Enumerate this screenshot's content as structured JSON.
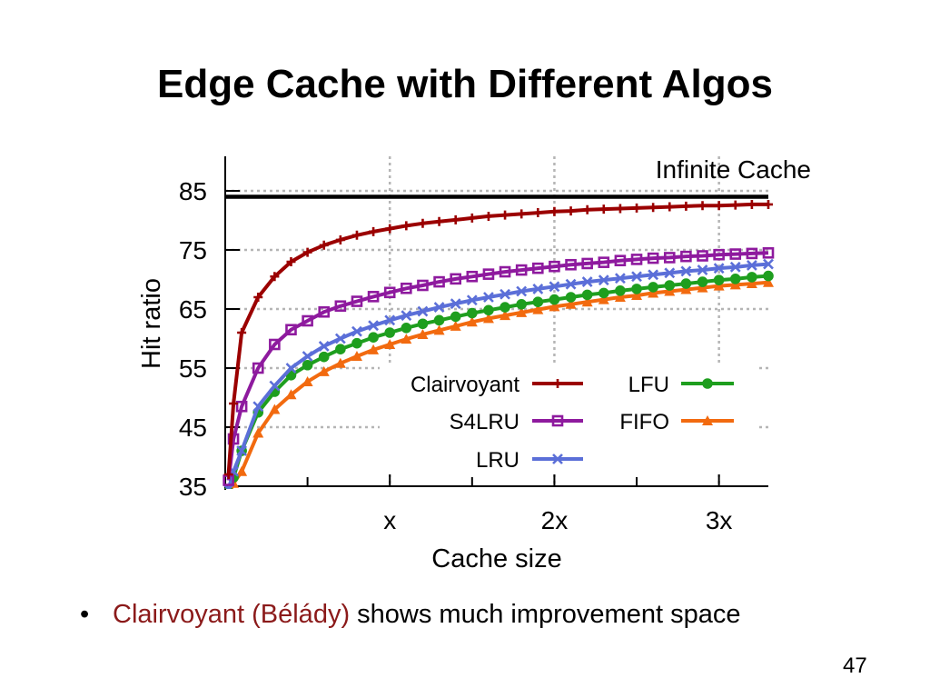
{
  "slide": {
    "title": "Edge Cache with Different Algos",
    "bullet": {
      "symbol": "•",
      "highlight": "Clairvoyant (Bélády)",
      "rest": " shows much improvement space",
      "highlight_color": "#8B1A1A"
    },
    "page_number": "47"
  },
  "chart_data": {
    "type": "line",
    "title": "",
    "xlabel": "Cache size",
    "ylabel": "Hit ratio",
    "xlim": [
      0,
      3.3
    ],
    "ylim": [
      35,
      85
    ],
    "x_ticks": [
      {
        "value": 1,
        "label": "x"
      },
      {
        "value": 2,
        "label": "2x"
      },
      {
        "value": 3,
        "label": "3x"
      }
    ],
    "x_minor_ticks": [
      0.5,
      1.5,
      2.5
    ],
    "y_ticks": [
      35,
      45,
      55,
      65,
      75,
      85
    ],
    "grid": true,
    "reference_line": {
      "label": "Infinite Cache",
      "value": 84
    },
    "legend": {
      "placement": "lower-right",
      "columns": 2
    },
    "x": [
      0.02,
      0.05,
      0.1,
      0.2,
      0.3,
      0.4,
      0.5,
      0.6,
      0.7,
      0.8,
      0.9,
      1.0,
      1.1,
      1.2,
      1.3,
      1.4,
      1.5,
      1.6,
      1.7,
      1.8,
      1.9,
      2.0,
      2.1,
      2.2,
      2.3,
      2.4,
      2.5,
      2.6,
      2.7,
      2.8,
      2.9,
      3.0,
      3.1,
      3.2,
      3.3
    ],
    "series": [
      {
        "name": "Clairvoyant",
        "color": "#9B0000",
        "marker": "plus",
        "values": [
          37,
          49,
          61,
          67,
          70.5,
          73,
          74.6,
          75.8,
          76.7,
          77.5,
          78.1,
          78.6,
          79.1,
          79.5,
          79.8,
          80.1,
          80.4,
          80.7,
          80.9,
          81.1,
          81.3,
          81.5,
          81.6,
          81.8,
          81.9,
          82.0,
          82.1,
          82.2,
          82.3,
          82.4,
          82.5,
          82.5,
          82.6,
          82.7,
          82.7
        ]
      },
      {
        "name": "S4LRU",
        "color": "#8E1A9E",
        "marker": "square",
        "values": [
          36,
          43,
          48.5,
          55,
          59,
          61.5,
          63,
          64.5,
          65.5,
          66.3,
          67.1,
          67.8,
          68.5,
          69.0,
          69.6,
          70.1,
          70.5,
          70.9,
          71.3,
          71.6,
          71.9,
          72.2,
          72.5,
          72.7,
          72.9,
          73.2,
          73.4,
          73.6,
          73.7,
          73.9,
          74.0,
          74.2,
          74.3,
          74.4,
          74.5
        ]
      },
      {
        "name": "LRU",
        "color": "#5B6FD8",
        "marker": "x",
        "values": [
          34.5,
          37.5,
          41,
          48.5,
          52,
          55,
          57,
          58.7,
          60,
          61.2,
          62.2,
          63.1,
          63.9,
          64.6,
          65.3,
          65.9,
          66.5,
          67.0,
          67.5,
          68.0,
          68.4,
          68.8,
          69.2,
          69.6,
          69.9,
          70.2,
          70.5,
          70.8,
          71.1,
          71.4,
          71.6,
          71.9,
          72.1,
          72.4,
          72.6
        ]
      },
      {
        "name": "LFU",
        "color": "#1E9E1E",
        "marker": "circle",
        "values": [
          34,
          36.5,
          41,
          47.5,
          51,
          53.8,
          55.5,
          56.9,
          58.2,
          59.2,
          60.2,
          61.0,
          61.8,
          62.5,
          63.1,
          63.7,
          64.3,
          64.8,
          65.3,
          65.8,
          66.2,
          66.6,
          67.0,
          67.4,
          67.7,
          68.1,
          68.4,
          68.7,
          69.0,
          69.3,
          69.6,
          69.9,
          70.1,
          70.4,
          70.6
        ]
      },
      {
        "name": "FIFO",
        "color": "#F26A0F",
        "marker": "triangle",
        "values": [
          33.5,
          35.5,
          37.5,
          44,
          48,
          50.5,
          52.7,
          54.4,
          55.8,
          57.0,
          58.1,
          59.0,
          59.9,
          60.7,
          61.4,
          62.1,
          62.8,
          63.4,
          63.9,
          64.4,
          64.9,
          65.4,
          65.8,
          66.2,
          66.6,
          67.0,
          67.3,
          67.7,
          68.0,
          68.3,
          68.6,
          68.9,
          69.1,
          69.3,
          69.5
        ]
      }
    ]
  }
}
